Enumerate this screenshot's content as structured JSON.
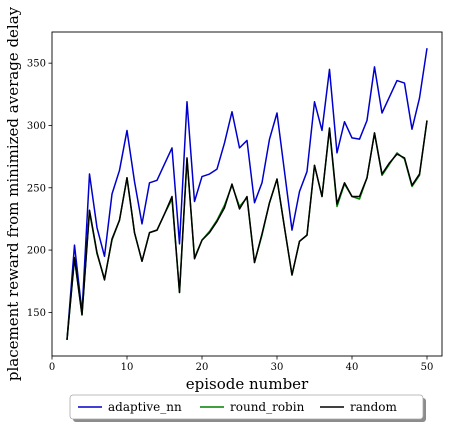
{
  "chart_data": {
    "type": "line",
    "xlabel": "episode number",
    "ylabel": "placement reward from minimized average delay",
    "xlim": [
      0,
      52
    ],
    "ylim": [
      115,
      375
    ],
    "x_ticks": [
      0,
      10,
      20,
      30,
      40,
      50
    ],
    "y_ticks": [
      150,
      200,
      250,
      300,
      350
    ],
    "grid": false,
    "legend_position": "below",
    "x": [
      2,
      3,
      4,
      5,
      6,
      7,
      8,
      9,
      10,
      11,
      12,
      13,
      14,
      15,
      16,
      17,
      18,
      19,
      20,
      21,
      22,
      23,
      24,
      25,
      26,
      27,
      28,
      29,
      30,
      31,
      32,
      33,
      34,
      35,
      36,
      37,
      38,
      39,
      40,
      41,
      42,
      43,
      44,
      45,
      46,
      47,
      48,
      49,
      50
    ],
    "series": [
      {
        "name": "adaptive_nn",
        "color": "#0000cc",
        "values": [
          128,
          204,
          150,
          261,
          218,
          195,
          245,
          264,
          296,
          255,
          221,
          254,
          256,
          269,
          282,
          205,
          319,
          239,
          259,
          261,
          265,
          286,
          311,
          282,
          288,
          238,
          254,
          289,
          310,
          263,
          216,
          247,
          263,
          319,
          296,
          345,
          278,
          303,
          290,
          289,
          304,
          347,
          310,
          323,
          336,
          334,
          297,
          322,
          362
        ]
      },
      {
        "name": "round_robin",
        "color": "#008000",
        "values": [
          128,
          193,
          148,
          231,
          197,
          177,
          208,
          224,
          258,
          214,
          191,
          214,
          216,
          229,
          241,
          166,
          273,
          194,
          208,
          215,
          224,
          236,
          252,
          235,
          242,
          190,
          212,
          238,
          257,
          218,
          180,
          207,
          212,
          268,
          243,
          297,
          235,
          253,
          243,
          241,
          258,
          294,
          260,
          269,
          278,
          273,
          251,
          260,
          304
        ]
      },
      {
        "name": "random",
        "color": "#000000",
        "values": [
          128,
          194,
          148,
          232,
          198,
          176,
          209,
          224,
          258,
          214,
          191,
          214,
          216,
          229,
          243,
          166,
          274,
          193,
          208,
          214,
          223,
          234,
          253,
          233,
          243,
          190,
          213,
          238,
          257,
          218,
          180,
          207,
          212,
          268,
          243,
          298,
          237,
          254,
          243,
          243,
          258,
          294,
          261,
          270,
          277,
          274,
          252,
          261,
          304
        ]
      }
    ]
  }
}
